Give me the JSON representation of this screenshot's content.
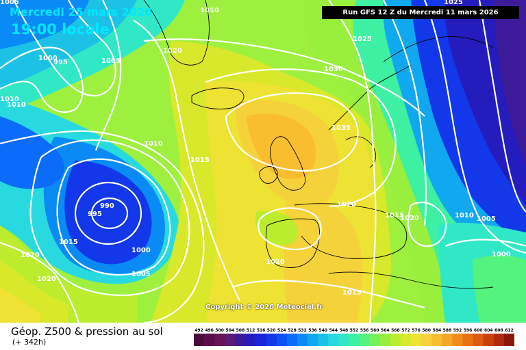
{
  "header": {
    "date": "Mercredi 25 mars 2026",
    "local_time": "19:00 locale",
    "run": "Run GFS 12 Z du Mercredi 11 mars 2026"
  },
  "copyright": "Copyright © 2026 Meteociel.fr",
  "footer": {
    "title": "Géop. Z500 & pression au sol",
    "subtitle": "(+ 342h)"
  },
  "legend": {
    "values": [
      "492",
      "496",
      "500",
      "504",
      "508",
      "512",
      "516",
      "520",
      "524",
      "528",
      "532",
      "536",
      "540",
      "544",
      "548",
      "552",
      "556",
      "560",
      "564",
      "568",
      "572",
      "576",
      "580",
      "584",
      "588",
      "592",
      "596",
      "600",
      "604",
      "608",
      "612"
    ],
    "colors": [
      "#4a0a3a",
      "#5a0d4a",
      "#6a1258",
      "#5a1a78",
      "#3d1a9a",
      "#241cbd",
      "#1a24d9",
      "#1238ea",
      "#0a52f5",
      "#0a6cf8",
      "#0a8af5",
      "#10a8ee",
      "#1cc2e6",
      "#28dadf",
      "#30e8c6",
      "#3ef0a2",
      "#54f27e",
      "#74f25a",
      "#98ef3e",
      "#bcec2e",
      "#d8e82a",
      "#eee232",
      "#f6d23a",
      "#f8be30",
      "#f6a626",
      "#f08c1c",
      "#e87216",
      "#dc5a12",
      "#c84010",
      "#b02a0c",
      "#8a1808"
    ]
  },
  "isobar_labels": [
    {
      "text": "1010"
    },
    {
      "text": "1000"
    },
    {
      "text": "995"
    },
    {
      "text": "1010"
    },
    {
      "text": "1010"
    },
    {
      "text": "1005"
    },
    {
      "text": "1020"
    },
    {
      "text": "1025"
    },
    {
      "text": "1030"
    },
    {
      "text": "1035"
    },
    {
      "text": "1025"
    },
    {
      "text": "1005"
    },
    {
      "text": "1010"
    },
    {
      "text": "1015"
    },
    {
      "text": "990"
    },
    {
      "text": "995"
    },
    {
      "text": "1015"
    },
    {
      "text": "1000"
    },
    {
      "text": "1005"
    },
    {
      "text": "1020"
    },
    {
      "text": "1020"
    },
    {
      "text": "1020"
    },
    {
      "text": "1020"
    },
    {
      "text": "1015"
    },
    {
      "text": "1015"
    },
    {
      "text": "1020"
    },
    {
      "text": "1010"
    },
    {
      "text": "1005"
    },
    {
      "text": "1000"
    }
  ]
}
